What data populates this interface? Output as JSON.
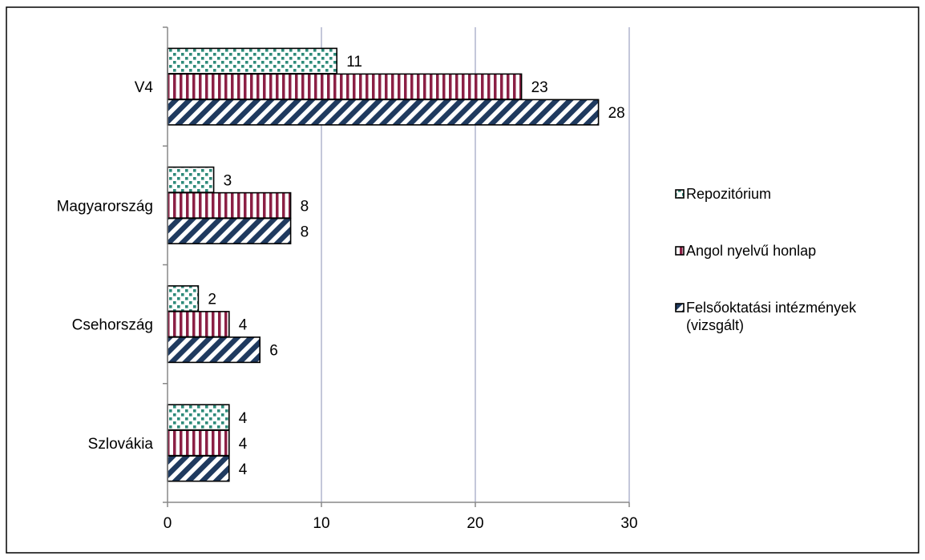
{
  "chart_data": {
    "type": "bar",
    "orientation": "horizontal",
    "categories": [
      "V4",
      "Magyarország",
      "Csehország",
      "Szlovákia"
    ],
    "series": [
      {
        "name": "Repozitórium",
        "values": [
          11,
          3,
          2,
          4
        ],
        "color": "#2e8b7a",
        "pattern": "dots"
      },
      {
        "name": "Angol nyelvű honlap",
        "values": [
          23,
          8,
          4,
          4
        ],
        "color": "#8b2045",
        "pattern": "vertical-stripes"
      },
      {
        "name": "Felsőoktatási intézmények (vizsgált)",
        "values": [
          28,
          8,
          6,
          4
        ],
        "color": "#1f3a5f",
        "pattern": "diagonal-stripes"
      }
    ],
    "xlim": [
      0,
      30
    ],
    "xticks": [
      "0",
      "10",
      "20",
      "30"
    ],
    "grid": "vertical",
    "legend_position": "right",
    "legend_lines": [
      [
        "Repozitórium"
      ],
      [
        "Angol nyelvű honlap"
      ],
      [
        "Felsőoktatási intézmények",
        "(vizsgált)"
      ]
    ]
  }
}
